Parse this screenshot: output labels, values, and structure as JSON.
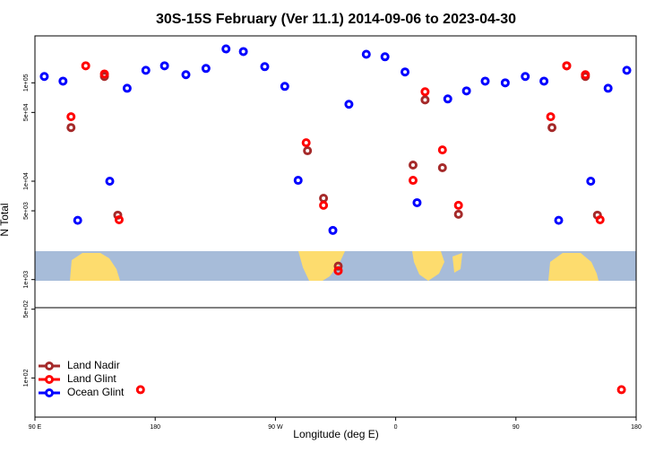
{
  "chart_data": {
    "type": "scatter",
    "title": "30S-15S February (Ver 11.1)   2014-09-06 to 2023-04-30",
    "xlabel": "Longitude (deg E)",
    "ylabel": "N Total",
    "xlim": [
      90,
      540
    ],
    "ylim": [
      40,
      300000
    ],
    "log_y": true,
    "legend": "lower left",
    "xticks": [
      {
        "value": 90,
        "label": "90 E"
      },
      180,
      {
        "value": 270,
        "label": "90 W"
      },
      {
        "value": 360,
        "label": "0"
      },
      {
        "value": 450,
        "label": "90"
      },
      {
        "value": 540,
        "label": "180"
      }
    ],
    "yticks": [
      {
        "value": 100,
        "label": "1e+02"
      },
      {
        "value": 500,
        "label": "5e+02"
      },
      {
        "value": 1000,
        "label": "1e+03"
      },
      {
        "value": 5000,
        "label": "5e+03"
      },
      {
        "value": 10000,
        "label": "1e+04"
      },
      {
        "value": 50000,
        "label": "5e+04"
      },
      {
        "value": 100000,
        "label": "1e+05"
      }
    ],
    "series": [
      {
        "name": "Land Nadir",
        "color": "#a52a2a",
        "x": [
          117,
          142,
          152,
          294,
          306,
          317,
          373,
          382,
          395,
          407,
          477,
          488,
          502,
          511
        ],
        "values": [
          35100,
          116000,
          4520,
          20400,
          6710,
          1370,
          14600,
          67100,
          13700,
          4610,
          35100,
          149000,
          116000,
          4520
        ]
      },
      {
        "name": "Land Glint",
        "color": "#ff0000",
        "x": [
          128,
          117,
          142,
          153,
          293,
          306,
          317,
          373,
          382,
          395,
          407,
          476,
          488,
          502,
          513,
          169,
          529
        ],
        "values": [
          149000,
          45200,
          123000,
          4060,
          24600,
          5690,
          1230,
          10200,
          81100,
          20800,
          5690,
          45200,
          149000,
          121000,
          4060,
          76,
          76
        ]
      },
      {
        "name": "Ocean Glint",
        "color": "#0000ff",
        "x": [
          97,
          111,
          122,
          146,
          159,
          173,
          187,
          203,
          218,
          233,
          246,
          262,
          277,
          287,
          313,
          325,
          338,
          352,
          367,
          376,
          399,
          413,
          427,
          442,
          457,
          471,
          482,
          506,
          519,
          533
        ],
        "values": [
          116000,
          104000,
          4000,
          10000,
          88000,
          134000,
          149000,
          121000,
          140000,
          221000,
          208000,
          146000,
          92000,
          10200,
          3160,
          60500,
          195000,
          184000,
          129000,
          6050,
          68600,
          82800,
          104000,
          100000,
          116000,
          104000,
          4000,
          10000,
          88000,
          134000
        ]
      }
    ]
  }
}
